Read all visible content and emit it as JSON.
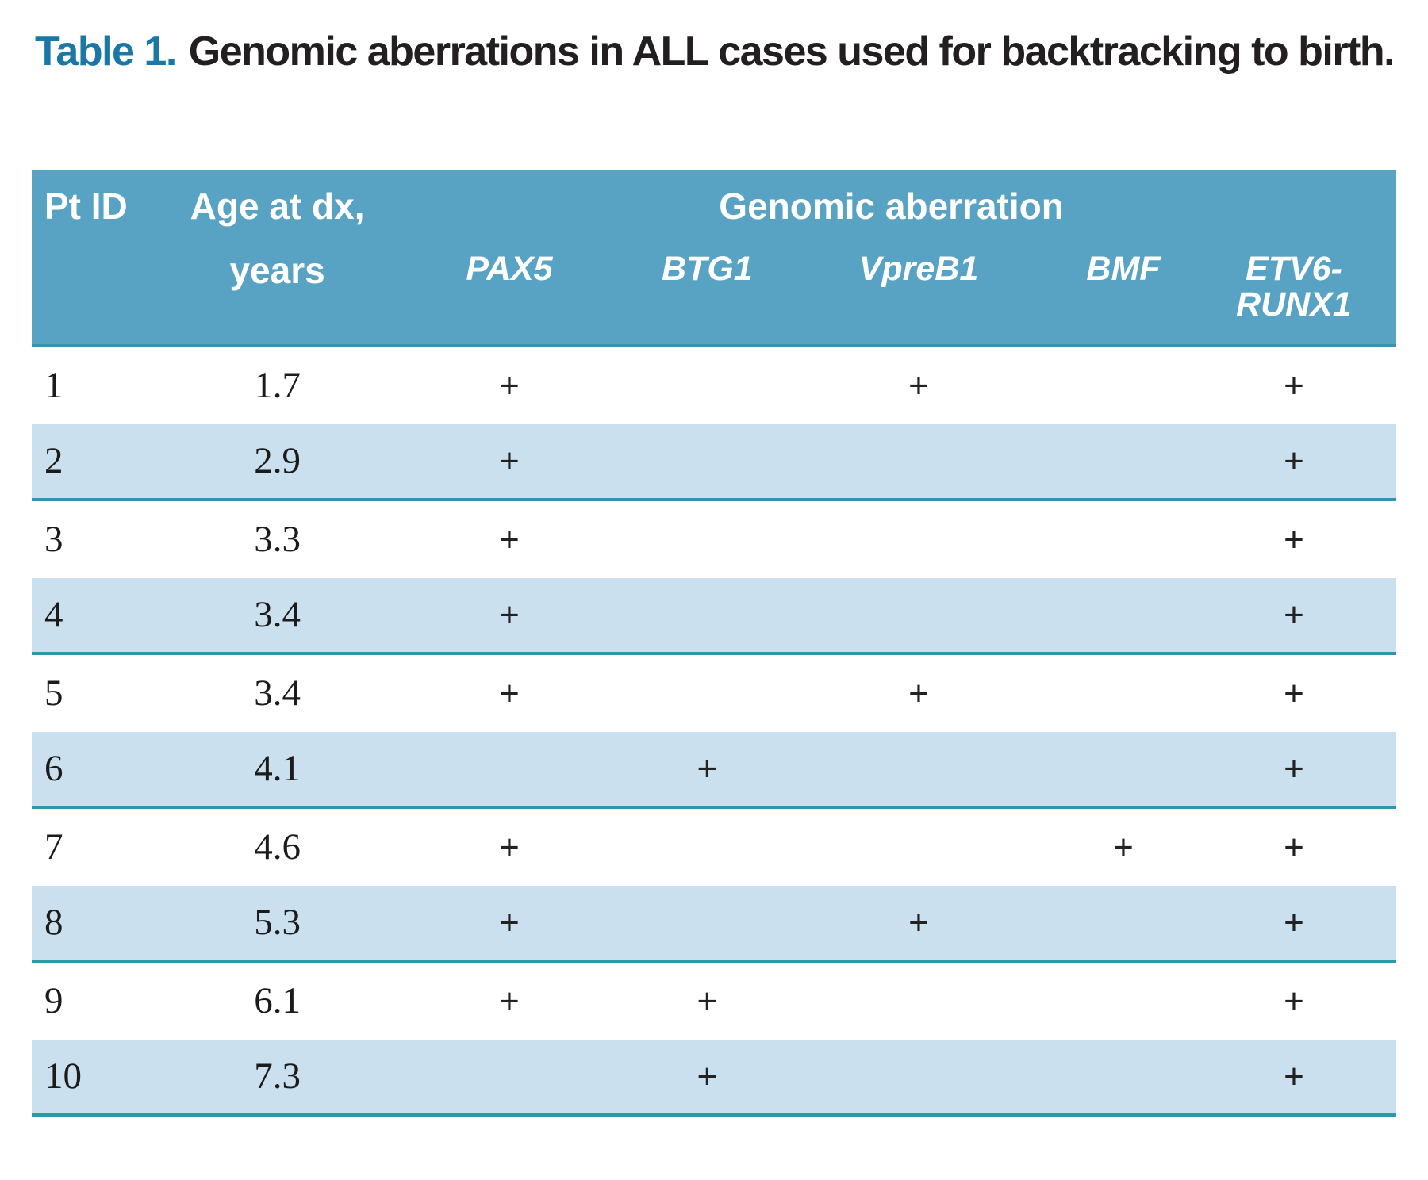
{
  "title": {
    "label": "Table 1.",
    "text": "Genomic aberrations in ALL cases used for backtracking to birth."
  },
  "table": {
    "header": {
      "pt_id": "Pt ID",
      "age_line1": "Age at dx,",
      "age_line2": "years",
      "group": "Genomic aberration",
      "genes": {
        "pax5": "PAX5",
        "btg1": "BTG1",
        "vpreb1": "VpreB1",
        "bmf": "BMF",
        "etv6_line1": "ETV6-",
        "etv6_line2": "RUNX1"
      }
    },
    "rows": [
      {
        "id": "1",
        "age": "1.7",
        "pax5": "+",
        "btg1": "",
        "vpreb1": "+",
        "bmf": "",
        "etv6": "+"
      },
      {
        "id": "2",
        "age": "2.9",
        "pax5": "+",
        "btg1": "",
        "vpreb1": "",
        "bmf": "",
        "etv6": "+"
      },
      {
        "id": "3",
        "age": "3.3",
        "pax5": "+",
        "btg1": "",
        "vpreb1": "",
        "bmf": "",
        "etv6": "+"
      },
      {
        "id": "4",
        "age": "3.4",
        "pax5": "+",
        "btg1": "",
        "vpreb1": "",
        "bmf": "",
        "etv6": "+"
      },
      {
        "id": "5",
        "age": "3.4",
        "pax5": "+",
        "btg1": "",
        "vpreb1": "+",
        "bmf": "",
        "etv6": "+"
      },
      {
        "id": "6",
        "age": "4.1",
        "pax5": "",
        "btg1": "+",
        "vpreb1": "",
        "bmf": "",
        "etv6": "+"
      },
      {
        "id": "7",
        "age": "4.6",
        "pax5": "+",
        "btg1": "",
        "vpreb1": "",
        "bmf": "+",
        "etv6": "+"
      },
      {
        "id": "8",
        "age": "5.3",
        "pax5": "+",
        "btg1": "",
        "vpreb1": "+",
        "bmf": "",
        "etv6": "+"
      },
      {
        "id": "9",
        "age": "6.1",
        "pax5": "+",
        "btg1": "+",
        "vpreb1": "",
        "bmf": "",
        "etv6": "+"
      },
      {
        "id": "10",
        "age": "7.3",
        "pax5": "",
        "btg1": "+",
        "vpreb1": "",
        "bmf": "",
        "etv6": "+"
      }
    ]
  },
  "colors": {
    "title_accent": "#1b77a6",
    "header_bg": "#58a3c3",
    "stripe_bg": "#cbe0ee",
    "rule_teal": "#2f96ae",
    "text": "#231f20"
  }
}
